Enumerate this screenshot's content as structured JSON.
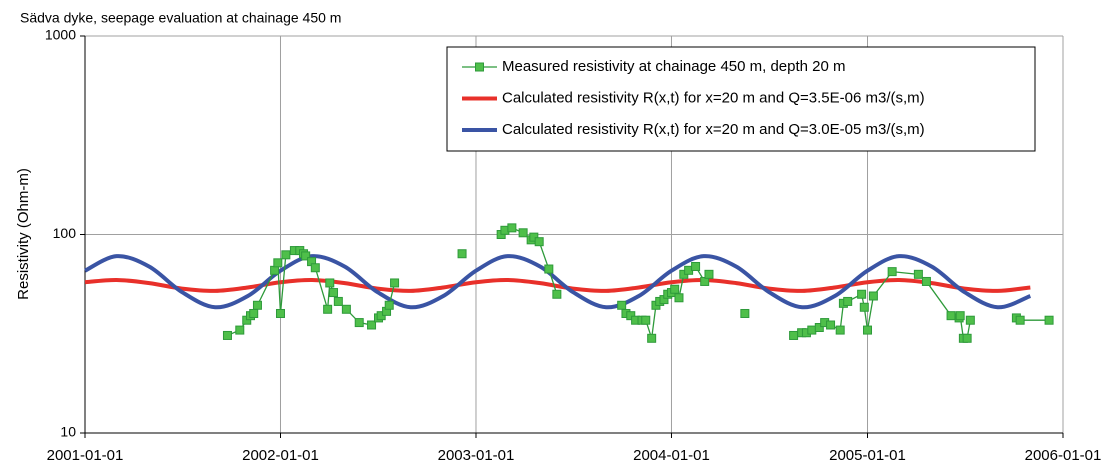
{
  "chart_data": {
    "type": "line",
    "title": "Sädva dyke, seepage evaluation at chainage 450 m",
    "y_label": "Resistivity (Ohm-m)",
    "log_y": true,
    "grid": true,
    "legend": "upper right",
    "xlim": [
      "2001-01-01",
      "2006-01-01"
    ],
    "xticks": [
      "2001-01-01",
      "2002-01-01",
      "2003-01-01",
      "2004-01-01",
      "2005-01-01",
      "2006-01-01"
    ],
    "ylim": [
      10,
      1000
    ],
    "yticks": [
      10,
      100,
      1000
    ],
    "series": [
      {
        "name": "Measured resistivity at chainage 450 m, depth 20 m",
        "color": "#2e9a3a",
        "marker": "square",
        "x": [
          "2001-09-24",
          "2001-10-17",
          "2001-10-30",
          "2001-11-06",
          "2001-11-12",
          "2001-11-19",
          "2001-12-21",
          "2001-12-27",
          "2002-01-01",
          "2002-01-11",
          "2002-01-27",
          "2002-02-06",
          "2002-02-13",
          "2002-02-17",
          "2002-02-28",
          "2002-03-07",
          "2002-03-30",
          "2002-04-03",
          "2002-04-10",
          "2002-04-19",
          "2002-05-04",
          "2002-05-28",
          "2002-06-20",
          "2002-07-03",
          "2002-07-08",
          "2002-07-18",
          "2002-07-23",
          "2002-08-02",
          "2002-12-06",
          "2003-02-17",
          "2003-02-24",
          "2003-03-09",
          "2003-03-30",
          "2003-04-14",
          "2003-04-19",
          "2003-04-29",
          "2003-05-17",
          "2003-06-01",
          "2003-09-30",
          "2003-10-08",
          "2003-10-17",
          "2003-10-26",
          "2003-11-07",
          "2003-11-14",
          "2003-11-25",
          "2003-12-03",
          "2003-12-10",
          "2003-12-18",
          "2003-12-25",
          "2004-01-01",
          "2004-01-07",
          "2004-01-15",
          "2004-01-24",
          "2004-02-02",
          "2004-02-15",
          "2004-03-03",
          "2004-03-11",
          "2004-05-17",
          "2004-08-16",
          "2004-08-31",
          "2004-09-09",
          "2004-09-19",
          "2004-10-03",
          "2004-10-13",
          "2004-10-24",
          "2004-11-11",
          "2004-11-17",
          "2004-11-25",
          "2004-12-21",
          "2004-12-26",
          "2005-01-01",
          "2005-01-12",
          "2005-02-16",
          "2005-04-06",
          "2005-04-21",
          "2005-06-06",
          "2005-06-21",
          "2005-06-23",
          "2005-06-29",
          "2005-07-06",
          "2005-07-12",
          "2005-10-06",
          "2005-10-13",
          "2005-12-06"
        ],
        "values": [
          31,
          33,
          37,
          39,
          40,
          44,
          66,
          72,
          40,
          79,
          83,
          83,
          80,
          78,
          73,
          68,
          42,
          57,
          51,
          46,
          42,
          36,
          35,
          38,
          39,
          41,
          44,
          57,
          80,
          100,
          105,
          108,
          102,
          94,
          97,
          92,
          67,
          50,
          44,
          40,
          39,
          37,
          37,
          37,
          30,
          44,
          46,
          47,
          50,
          51,
          53,
          48,
          63,
          66,
          69,
          58,
          63,
          40,
          31,
          32,
          32,
          33,
          34,
          36,
          35,
          33,
          45,
          46,
          50,
          43,
          33,
          49,
          65,
          63,
          58,
          39,
          38,
          39,
          30,
          30,
          37,
          38,
          37,
          37
        ]
      },
      {
        "name": "Calculated resistivity R(x,t) for x=20 m and  Q=3.5E-06 m3/(s,m)",
        "color": "#e8302a",
        "smooth": true,
        "x": [
          "2001-01-01",
          "2001-03-01",
          "2001-05-01",
          "2001-07-01",
          "2001-09-01",
          "2001-11-01",
          "2002-01-01",
          "2002-03-01",
          "2002-05-01",
          "2002-07-01",
          "2002-09-01",
          "2002-11-01",
          "2003-01-01",
          "2003-03-01",
          "2003-05-01",
          "2003-07-01",
          "2003-09-01",
          "2003-11-01",
          "2004-01-01",
          "2004-03-01",
          "2004-05-01",
          "2004-07-01",
          "2004-09-01",
          "2004-11-01",
          "2005-01-01",
          "2005-03-01",
          "2005-05-01",
          "2005-07-01",
          "2005-09-01",
          "2005-11-01"
        ],
        "values": [
          57.5,
          59.0,
          56.9,
          53.4,
          52.0,
          54.1,
          57.5,
          59.0,
          56.9,
          53.4,
          52.0,
          54.1,
          57.5,
          59.0,
          56.9,
          53.4,
          52.0,
          54.1,
          57.5,
          59.0,
          56.9,
          53.4,
          52.0,
          54.1,
          57.5,
          59.0,
          56.9,
          53.4,
          52.0,
          54.1
        ]
      },
      {
        "name": "Calculated resistivity R(x,t) for x=20 m and  Q=3.0E-05 m3/(s,m)",
        "color": "#3a54a4",
        "smooth": true,
        "x": [
          "2001-01-01",
          "2001-03-01",
          "2001-05-01",
          "2001-07-01",
          "2001-09-01",
          "2001-11-01",
          "2002-01-01",
          "2002-03-01",
          "2002-05-01",
          "2002-07-01",
          "2002-09-01",
          "2002-11-01",
          "2003-01-01",
          "2003-03-01",
          "2003-05-01",
          "2003-07-01",
          "2003-09-01",
          "2003-11-01",
          "2004-01-01",
          "2004-03-01",
          "2004-05-01",
          "2004-07-01",
          "2004-09-01",
          "2004-11-01",
          "2005-01-01",
          "2005-03-01",
          "2005-05-01",
          "2005-07-01",
          "2005-09-01",
          "2005-11-01"
        ],
        "values": [
          65.7,
          77.8,
          68.9,
          51.3,
          43.0,
          49.0,
          65.7,
          77.8,
          68.9,
          51.3,
          43.0,
          49.0,
          65.7,
          77.8,
          68.9,
          51.3,
          43.0,
          49.0,
          65.7,
          77.8,
          68.9,
          51.3,
          43.0,
          49.0,
          65.7,
          77.8,
          68.9,
          51.3,
          43.0,
          49.0
        ]
      }
    ]
  }
}
